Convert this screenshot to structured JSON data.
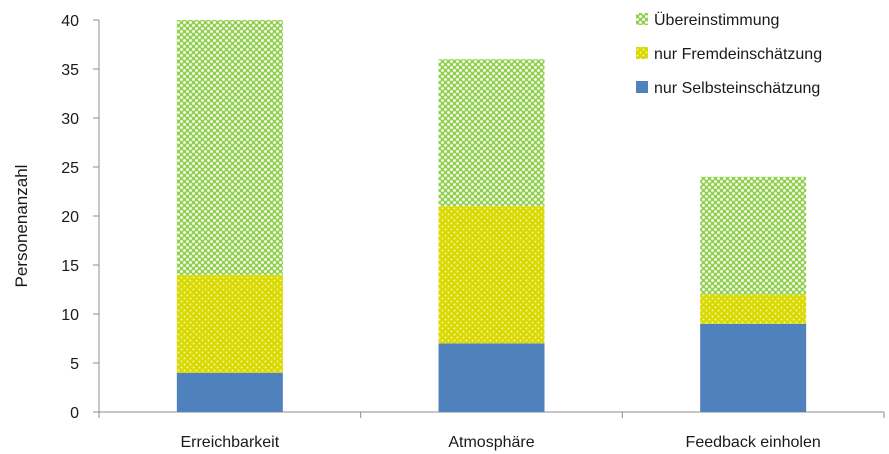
{
  "chart_data": {
    "type": "bar",
    "stacked": true,
    "categories": [
      "Erreichbarkeit",
      "Atmosphäre",
      "Feedback einholen"
    ],
    "series": [
      {
        "name": "nur Selbsteinschätzung",
        "values": [
          4,
          7,
          9
        ],
        "color": "#4f81bd",
        "pattern": "solid"
      },
      {
        "name": "nur Fremdeinschätzung",
        "values": [
          10,
          14,
          3
        ],
        "color": "#d9d900",
        "pattern": "dotted"
      },
      {
        "name": "Übereinstimmung",
        "values": [
          26,
          15,
          12
        ],
        "color": "#92d050",
        "pattern": "dotted"
      }
    ],
    "title": "",
    "xlabel": "",
    "ylabel": "Personenanzahl",
    "ylim": [
      0,
      40
    ],
    "yticks": [
      0,
      5,
      10,
      15,
      20,
      25,
      30,
      35,
      40
    ],
    "grid": false,
    "legend_position": "top-right",
    "legend_order": [
      "Übereinstimmung",
      "nur Fremdeinschätzung",
      "nur Selbsteinschätzung"
    ]
  }
}
